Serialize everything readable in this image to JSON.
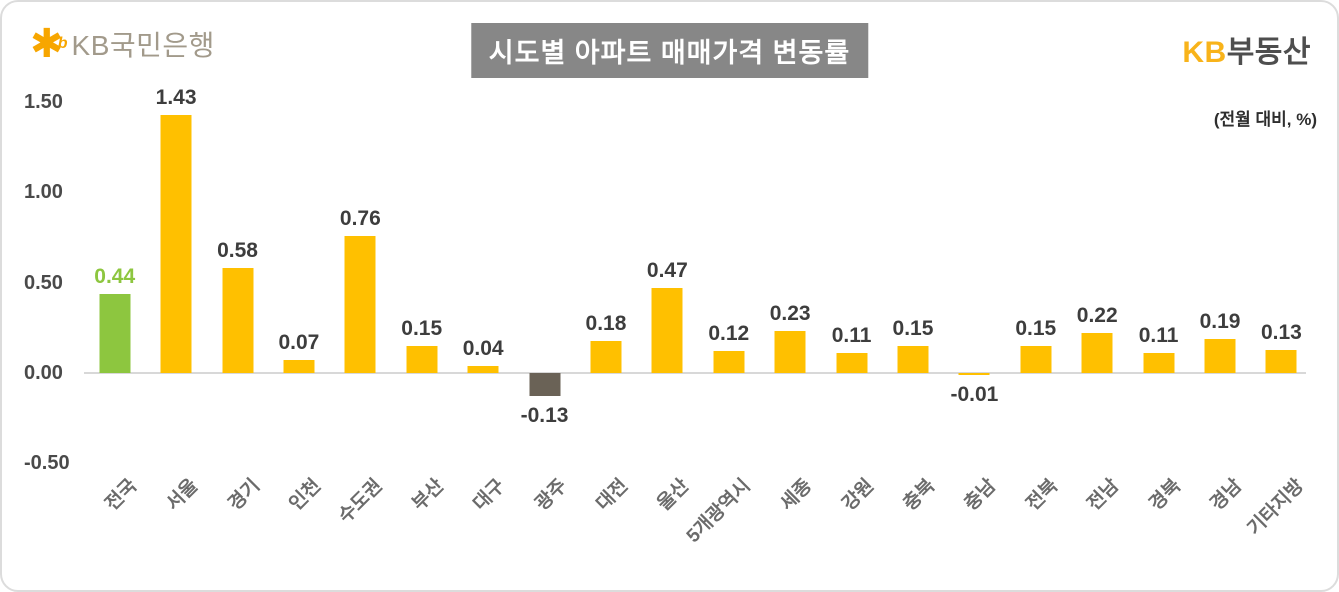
{
  "header": {
    "bank_logo": {
      "star": "✱",
      "star_b": "b",
      "text": "KB국민은행"
    },
    "title": "시도별 아파트 매매가격 변동률",
    "brand": {
      "kb": "KB",
      "rest": "부동산"
    },
    "unit_note": "(전월 대비, %)"
  },
  "chart_data": {
    "type": "bar",
    "title": "시도별 아파트 매매가격 변동률",
    "unit_note": "(전월 대비, %)",
    "categories": [
      "전국",
      "서울",
      "경기",
      "인천",
      "수도권",
      "부산",
      "대구",
      "광주",
      "대전",
      "울산",
      "5개광역시",
      "세종",
      "강원",
      "충북",
      "충남",
      "전북",
      "전남",
      "경북",
      "경남",
      "기타지방"
    ],
    "values": [
      0.44,
      1.43,
      0.58,
      0.07,
      0.76,
      0.15,
      0.04,
      -0.13,
      0.18,
      0.47,
      0.12,
      0.23,
      0.11,
      0.15,
      -0.01,
      0.15,
      0.22,
      0.11,
      0.19,
      0.13
    ],
    "value_labels": [
      "0.44",
      "1.43",
      "0.58",
      "0.07",
      "0.76",
      "0.15",
      "0.04",
      "-0.13",
      "0.18",
      "0.47",
      "0.12",
      "0.23",
      "0.11",
      "0.15",
      "-0.01",
      "0.15",
      "0.22",
      "0.11",
      "0.19",
      "0.13"
    ],
    "bar_colors": [
      "#8DC63F",
      "#FFC000",
      "#FFC000",
      "#FFC000",
      "#FFC000",
      "#FFC000",
      "#FFC000",
      "#6A6256",
      "#FFC000",
      "#FFC000",
      "#FFC000",
      "#FFC000",
      "#FFC000",
      "#FFC000",
      "#FFC000",
      "#FFC000",
      "#FFC000",
      "#FFC000",
      "#FFC000",
      "#FFC000"
    ],
    "value_label_colors": [
      "#8DC63F",
      "#3D3D3D",
      "#3D3D3D",
      "#3D3D3D",
      "#3D3D3D",
      "#3D3D3D",
      "#3D3D3D",
      "#3D3D3D",
      "#3D3D3D",
      "#3D3D3D",
      "#3D3D3D",
      "#3D3D3D",
      "#3D3D3D",
      "#3D3D3D",
      "#3D3D3D",
      "#3D3D3D",
      "#3D3D3D",
      "#3D3D3D",
      "#3D3D3D",
      "#3D3D3D"
    ],
    "y_ticks": [
      {
        "value": 1.5,
        "label": "1.50"
      },
      {
        "value": 1.0,
        "label": "1.00"
      },
      {
        "value": 0.5,
        "label": "0.50"
      },
      {
        "value": 0.0,
        "label": "0.00"
      },
      {
        "value": -0.5,
        "label": "-0.50"
      }
    ],
    "ylim": [
      -0.5,
      1.5
    ],
    "grid": false,
    "legend": "none",
    "colors": {
      "bar_default": "#FFC000",
      "bar_national_highlight": "#8DC63F",
      "bar_negative_gwangju": "#6A6256",
      "value_label_default": "#3D3D3D",
      "title_bg": "#878787",
      "brand_gold": "#F8B31A"
    }
  }
}
